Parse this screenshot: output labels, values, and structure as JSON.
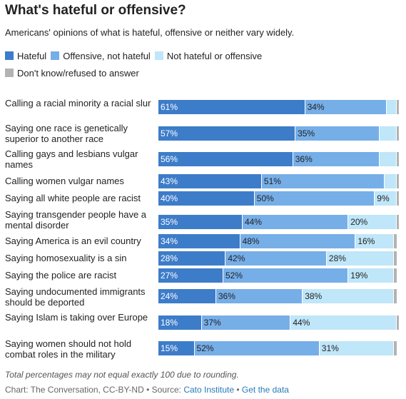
{
  "header": {
    "title": "What's hateful or offensive?",
    "subtitle": "Americans' opinions of what is hateful, offensive or neither vary widely."
  },
  "colors": {
    "hateful": "#3d7cc9",
    "offensive": "#76aee8",
    "neither": "#bfe6f9",
    "dont_know": "#b3b3b3"
  },
  "chart_data": {
    "type": "bar",
    "orientation": "horizontal",
    "stacked": true,
    "categories": [
      "Calling a racial minority a racial slur",
      "Saying one race is genetically superior to another race",
      "Calling gays and lesbians vulgar names",
      "Calling women vulgar names",
      "Saying all white people are racist",
      "Saying transgender people have a mental disorder",
      "Saying America is an evil country",
      "Saying homosexuality is a sin",
      "Saying the police are racist",
      "Saying undocumented immigrants should be deported",
      "Saying Islam is taking over Europe",
      "Saying women should not hold combat roles in the military"
    ],
    "series": [
      {
        "name": "Hateful",
        "values": [
          61,
          57,
          56,
          43,
          40,
          35,
          34,
          28,
          27,
          24,
          18,
          15
        ]
      },
      {
        "name": "Offensive, not hateful",
        "values": [
          34,
          35,
          36,
          51,
          50,
          44,
          48,
          42,
          52,
          36,
          37,
          52
        ]
      },
      {
        "name": "Not hateful or offensive",
        "values": [
          4,
          7,
          7,
          5,
          9,
          20,
          16,
          28,
          19,
          38,
          44,
          31
        ]
      },
      {
        "name": "Don't know/refused to answer",
        "values": [
          1,
          1,
          1,
          1,
          1,
          1,
          1,
          1,
          1,
          1,
          1,
          1
        ]
      }
    ],
    "value_labels": [
      [
        "61%",
        "34%",
        "",
        ""
      ],
      [
        "57%",
        "35%",
        "",
        ""
      ],
      [
        "56%",
        "36%",
        "",
        ""
      ],
      [
        "43%",
        "51%",
        "",
        ""
      ],
      [
        "40%",
        "50%",
        "9%",
        ""
      ],
      [
        "35%",
        "44%",
        "20%",
        ""
      ],
      [
        "34%",
        "48%",
        "16%",
        ""
      ],
      [
        "28%",
        "42%",
        "28%",
        ""
      ],
      [
        "27%",
        "52%",
        "19%",
        ""
      ],
      [
        "24%",
        "36%",
        "38%",
        ""
      ],
      [
        "18%",
        "37%",
        "44%",
        ""
      ],
      [
        "15%",
        "52%",
        "31%",
        ""
      ]
    ],
    "xlim": [
      0,
      100
    ],
    "legend_position": "top-left"
  },
  "footer": {
    "note": "Total percentages may not equal exactly 100 due to rounding.",
    "credit_prefix": "Chart: The Conversation, CC-BY-ND • Source: ",
    "source_link": "Cato Institute",
    "separator": " • ",
    "data_link": "Get the data"
  }
}
